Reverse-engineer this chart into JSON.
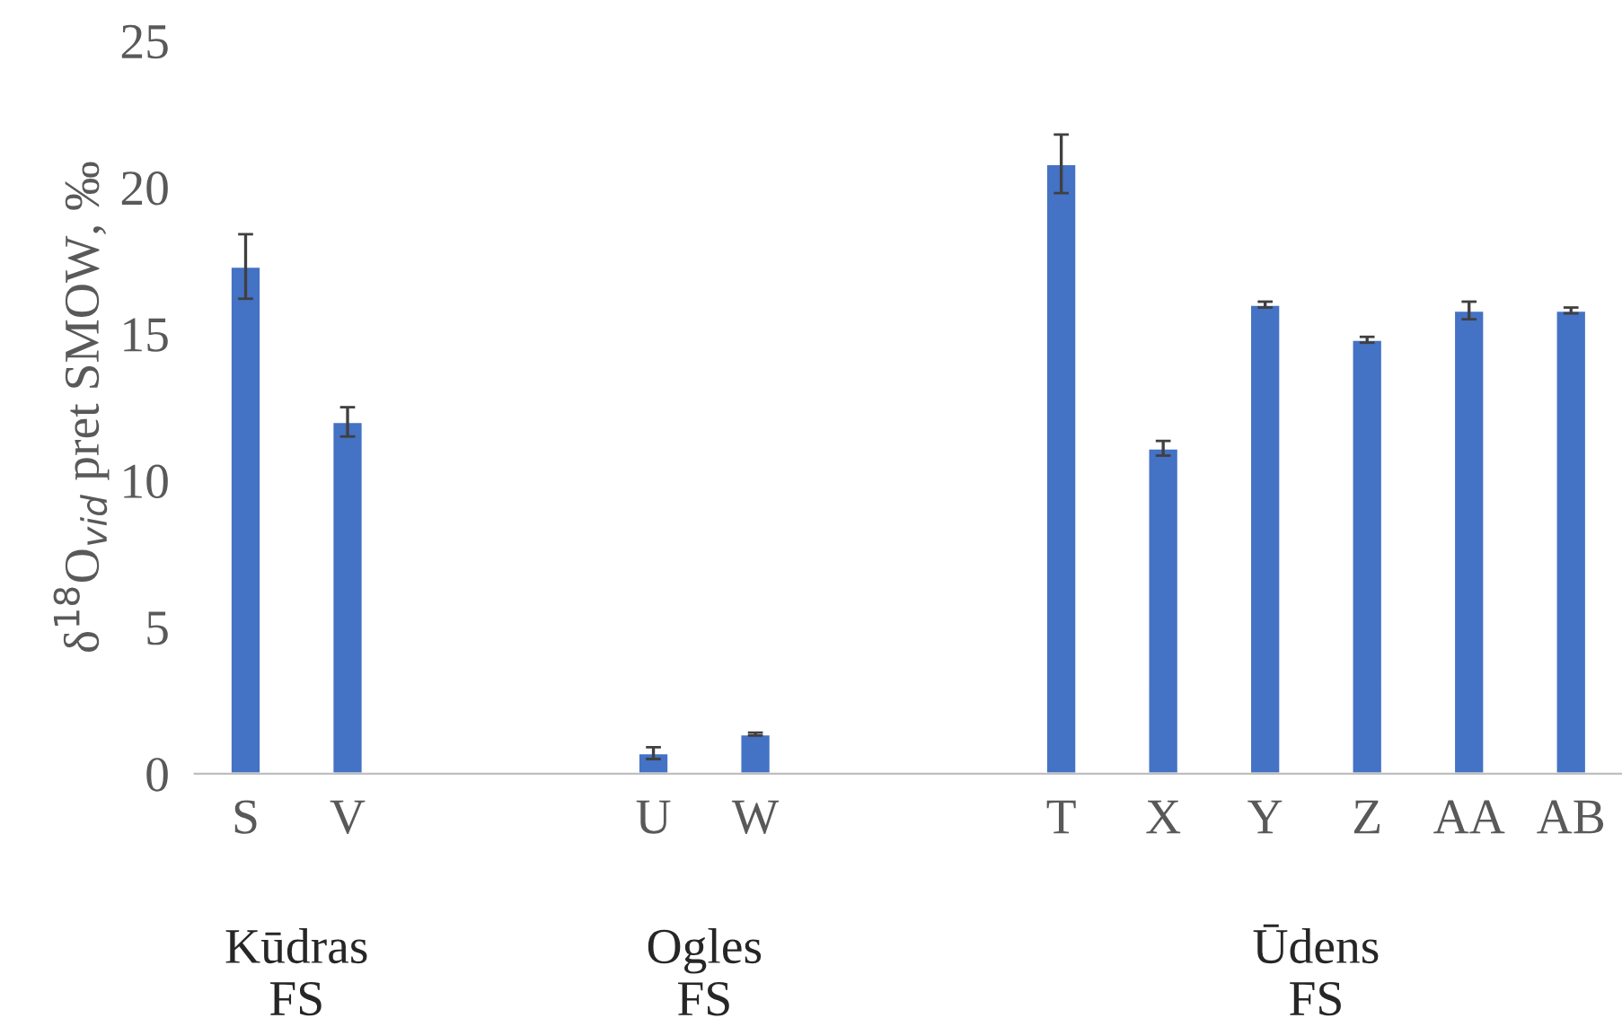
{
  "chart_data": {
    "type": "bar",
    "ylabel": "δ$^{18}$O$_{vid}$ pret SMOW, ‰",
    "categories": [
      "S",
      "V",
      null,
      null,
      "U",
      "W",
      null,
      null,
      "T",
      "X",
      "Y",
      "Z",
      "AA",
      "AB"
    ],
    "values": [
      17.3,
      12.0,
      null,
      null,
      0.7,
      1.35,
      null,
      null,
      20.8,
      11.1,
      16.0,
      14.8,
      15.8,
      15.8
    ],
    "errors": [
      1.1,
      0.5,
      null,
      null,
      0.2,
      0.05,
      null,
      null,
      1.0,
      0.25,
      0.1,
      0.1,
      0.3,
      0.1
    ],
    "color": "#4472c4",
    "ylim": [
      0,
      25
    ],
    "yticks": [
      0,
      5,
      10,
      15,
      20,
      25
    ],
    "grid": false,
    "legend": false,
    "annotations": [
      "Kūdras\nFS",
      "Ogles\nFS",
      "Ūdens\nFS"
    ]
  }
}
